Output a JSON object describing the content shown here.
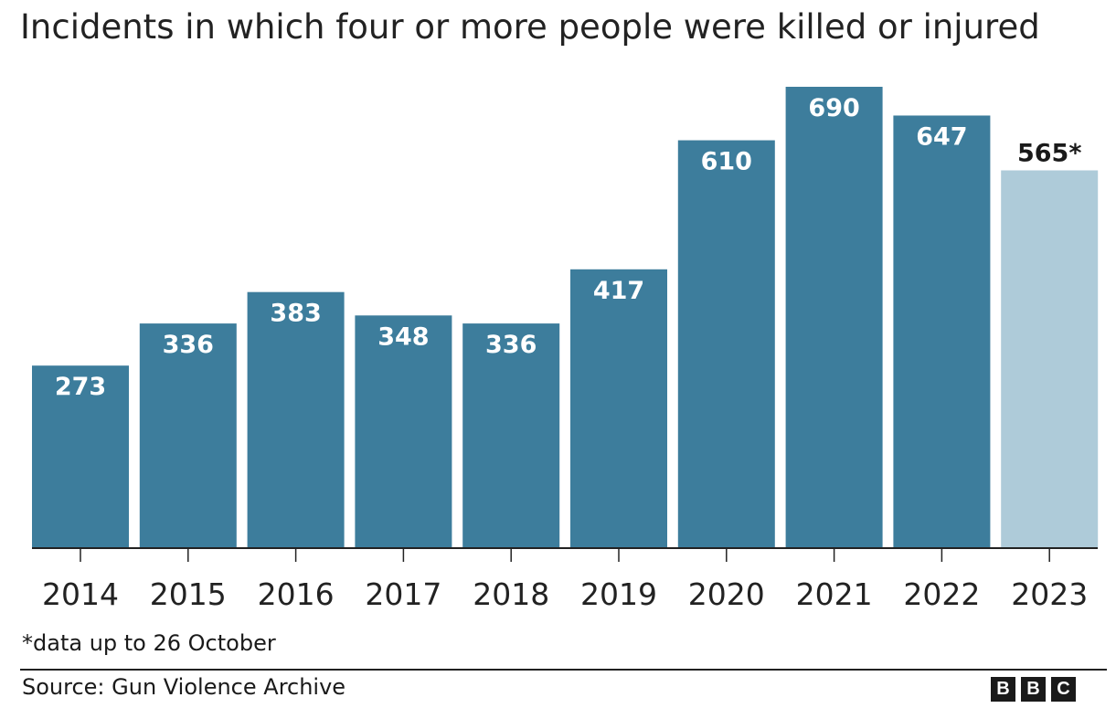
{
  "chart_data": {
    "type": "bar",
    "title": "Incidents in which four or more people were killed or injured",
    "categories": [
      "2014",
      "2015",
      "2016",
      "2017",
      "2018",
      "2019",
      "2020",
      "2021",
      "2022",
      "2023"
    ],
    "values": [
      273,
      336,
      383,
      348,
      336,
      417,
      610,
      690,
      647,
      565
    ],
    "data_labels": [
      "273",
      "336",
      "383",
      "348",
      "336",
      "417",
      "610",
      "690",
      "647",
      "565*"
    ],
    "ylim": [
      0,
      690
    ],
    "grid": false,
    "colors": {
      "bar": "#3d7d9c",
      "highlight_bar": "#aecbd9",
      "label_inside": "#ffffff",
      "label_outside": "#1a1a1a",
      "axis": "#222222"
    },
    "highlight_index": 9,
    "xlabel": "",
    "ylabel": ""
  },
  "footnote": "*data up to 26 October",
  "source": "Source: Gun Violence Archive",
  "logo": [
    "B",
    "B",
    "C"
  ]
}
